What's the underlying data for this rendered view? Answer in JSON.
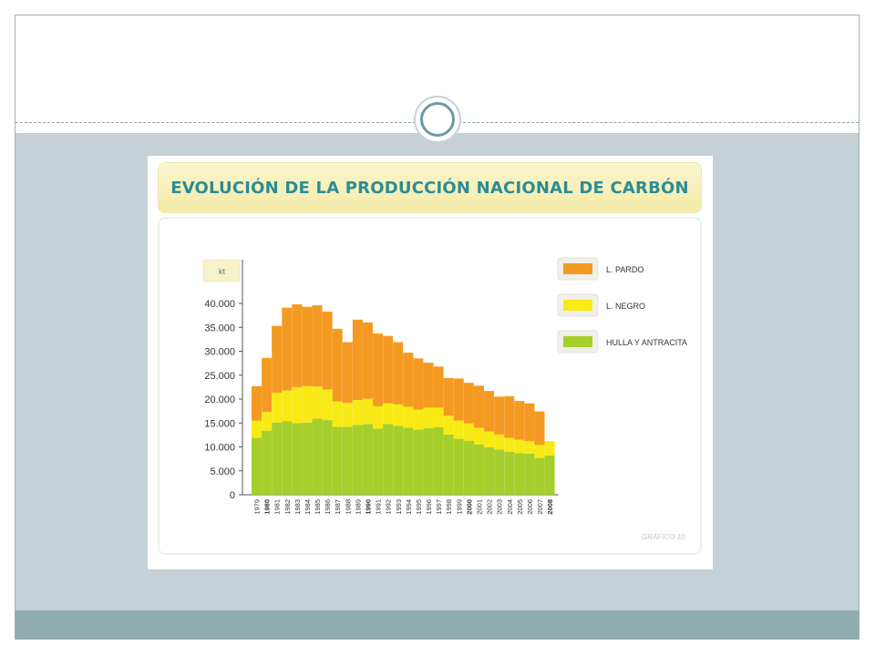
{
  "chart_data": {
    "type": "bar",
    "stacked": true,
    "title": "EVOLUCIÓN DE LA PRODUCCIÓN NACIONAL DE CARBÓN",
    "unit_label": "kt",
    "ylim": [
      0,
      40000
    ],
    "yticks": [
      "0",
      "5.000",
      "10.000",
      "15.000",
      "20.000",
      "25.000",
      "30.000",
      "35.000",
      "40.000"
    ],
    "categories": [
      "1979",
      "1980",
      "1981",
      "1982",
      "1983",
      "1984",
      "1985",
      "1986",
      "1987",
      "1988",
      "1989",
      "1990",
      "1991",
      "1992",
      "1993",
      "1994",
      "1995",
      "1996",
      "1997",
      "1998",
      "1999",
      "2000",
      "2001",
      "2002",
      "2003",
      "2004",
      "2005",
      "2006",
      "2007",
      "2008"
    ],
    "bold_categories": [
      "1980",
      "1990",
      "2000",
      "2008"
    ],
    "legend_position": "right",
    "series": [
      {
        "name": "HULLA Y ANTRACITA",
        "color": "#a6cf2c",
        "values": [
          11900,
          13400,
          15100,
          15400,
          15000,
          15100,
          15900,
          15600,
          14200,
          14200,
          14600,
          14800,
          13800,
          14800,
          14400,
          14000,
          13600,
          13900,
          14100,
          12600,
          11700,
          11300,
          10500,
          9900,
          9500,
          9000,
          8700,
          8600,
          7700,
          8200
        ]
      },
      {
        "name": "L. NEGRO",
        "color": "#f8ea14",
        "values": [
          3600,
          3900,
          6200,
          6400,
          7500,
          7600,
          6700,
          6400,
          5300,
          5000,
          5200,
          5300,
          4700,
          4300,
          4500,
          4400,
          4200,
          4300,
          4100,
          3900,
          3800,
          3600,
          3500,
          3300,
          3100,
          2900,
          2800,
          2600,
          2700,
          3000
        ]
      },
      {
        "name": "L. PARDO",
        "color": "#f49a22",
        "values": [
          7200,
          11300,
          14000,
          17300,
          17300,
          16600,
          17000,
          16300,
          15200,
          12700,
          16800,
          15900,
          15200,
          14100,
          13000,
          11300,
          10700,
          9400,
          8600,
          7900,
          8800,
          8500,
          8800,
          8500,
          7900,
          8700,
          8100,
          7900,
          7000,
          0
        ]
      }
    ],
    "footer_label": "GRÁFICO 10"
  }
}
